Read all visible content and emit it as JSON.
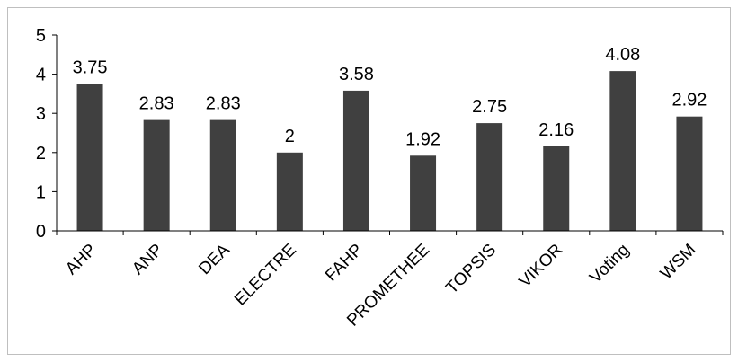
{
  "chart_data": {
    "type": "bar",
    "categories": [
      "AHP",
      "ANP",
      "DEA",
      "ELECTRE",
      "FAHP",
      "PROMETHEE",
      "TOPSIS",
      "VIKOR",
      "Voting",
      "WSM"
    ],
    "values": [
      3.75,
      2.83,
      2.83,
      2,
      3.58,
      1.92,
      2.75,
      2.16,
      4.08,
      2.92
    ],
    "data_labels": [
      "3.75",
      "2.83",
      "2.83",
      "2",
      "3.58",
      "1.92",
      "2.75",
      "2.16",
      "4.08",
      "2.92"
    ],
    "y_ticks": [
      "0",
      "1",
      "2",
      "3",
      "4",
      "5"
    ],
    "ylim": [
      0,
      5
    ],
    "title": "",
    "xlabel": "",
    "ylabel": "",
    "grid": false,
    "legend": "none",
    "bar_color": "#404040",
    "axis_color": "#000000"
  }
}
